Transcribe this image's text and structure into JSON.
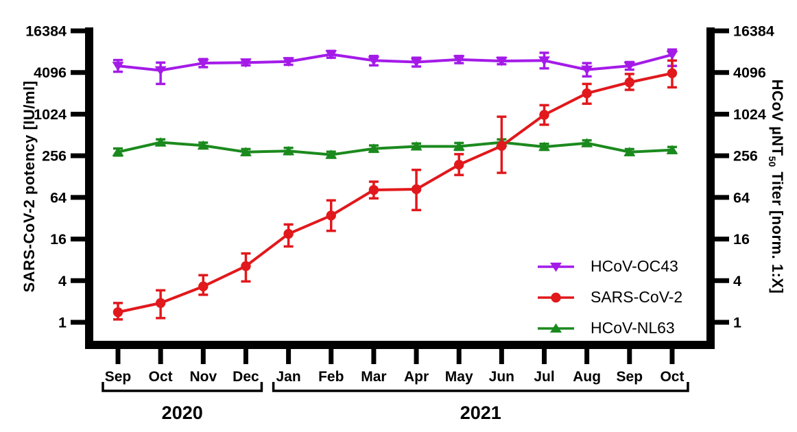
{
  "chart_data": {
    "type": "line",
    "title": "",
    "x_categories": [
      "Sep",
      "Oct",
      "Nov",
      "Dec",
      "Jan",
      "Feb",
      "Mar",
      "Apr",
      "May",
      "Jun",
      "Jul",
      "Aug",
      "Sep",
      "Oct"
    ],
    "year_groups": [
      {
        "label": "2020",
        "from": 0,
        "to": 3
      },
      {
        "label": "2021",
        "from": 4,
        "to": 13
      }
    ],
    "y_scale": "log base 4",
    "y_ticks": [
      1,
      4,
      16,
      64,
      256,
      1024,
      4096,
      16384
    ],
    "ylim": [
      0.55,
      28000
    ],
    "grid": "off",
    "legend_position": "inside right",
    "axis_color": "#000000",
    "axes": {
      "left_label": "SARS-CoV-2 potency [IU/ml]",
      "right_label_pre": "HCoV µNT",
      "right_label_sub": "50",
      "right_label_post": " Titer [norm. 1:X]"
    },
    "series": [
      {
        "name": "HCoV-OC43",
        "color": "#A41BE8",
        "marker": "triangle-down",
        "values": [
          5100,
          4400,
          5600,
          5700,
          5900,
          7500,
          6100,
          5800,
          6300,
          6000,
          6100,
          4500,
          5100,
          7400
        ],
        "err_lo": [
          4200,
          2800,
          4900,
          5200,
          5300,
          6700,
          5200,
          5000,
          5600,
          5400,
          4700,
          3600,
          4500,
          5100
        ],
        "err_hi": [
          6200,
          5700,
          6400,
          6300,
          6600,
          8400,
          7100,
          6700,
          7100,
          6700,
          7900,
          5600,
          5800,
          8800
        ]
      },
      {
        "name": "SARS-CoV-2",
        "color": "#E1181C",
        "marker": "circle",
        "values": [
          1.4,
          1.9,
          3.3,
          6.5,
          19,
          35,
          82,
          84,
          190,
          355,
          1000,
          2050,
          2950,
          4000
        ],
        "err_lo": [
          1.1,
          1.15,
          2.5,
          3.9,
          12.5,
          21,
          62,
          42,
          135,
          145,
          720,
          1450,
          2300,
          2500
        ],
        "err_hi": [
          1.9,
          2.9,
          4.8,
          9.9,
          26,
          58,
          108,
          160,
          270,
          940,
          1380,
          2800,
          3900,
          6100
        ]
      },
      {
        "name": "HCoV-NL63",
        "color": "#1B8A1E",
        "marker": "triangle-up",
        "values": [
          290,
          400,
          360,
          290,
          300,
          265,
          325,
          350,
          350,
          400,
          345,
          390,
          290,
          310
        ],
        "err_lo": [
          258,
          362,
          328,
          262,
          270,
          240,
          292,
          318,
          312,
          362,
          312,
          355,
          262,
          280
        ],
        "err_hi": [
          326,
          442,
          396,
          320,
          333,
          293,
          361,
          385,
          392,
          442,
          381,
          428,
          320,
          343
        ]
      }
    ]
  }
}
